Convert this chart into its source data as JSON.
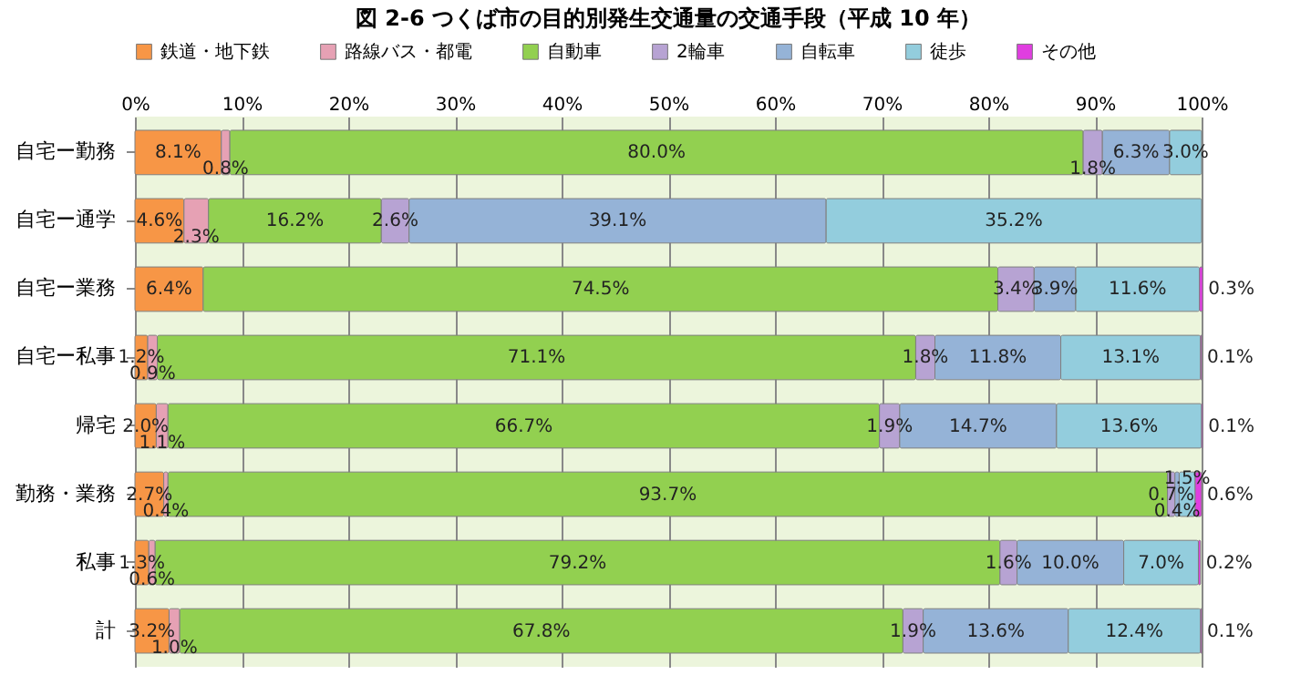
{
  "chart_data": {
    "type": "bar",
    "orientation": "horizontal",
    "stacked": true,
    "title": "図 2-6 つくば市の目的別発生交通量の交通手段（平成 10 年）",
    "categories": [
      "自宅ー勤務",
      "自宅ー通学",
      "自宅ー業務",
      "自宅ー私事",
      "帰宅",
      "勤務・業務",
      "私事",
      "計"
    ],
    "series": [
      {
        "name": "鉄道・地下鉄",
        "color": "#f79646",
        "values": [
          8.1,
          4.6,
          6.4,
          1.2,
          2.0,
          2.7,
          1.3,
          3.2
        ],
        "value_labels": [
          "8.1%",
          "4.6%",
          "6.4%",
          "1.2%",
          "2.0%",
          "2.7%",
          "1.3%",
          "3.2%"
        ]
      },
      {
        "name": "路線バス・都電",
        "color": "#e6a1b4",
        "values": [
          0.8,
          2.3,
          null,
          0.9,
          1.1,
          0.4,
          0.6,
          1.0
        ],
        "value_labels": [
          "0.8%",
          "2.3%",
          null,
          "0.9%",
          "1.1%",
          "0.4%",
          "0.6%",
          "1.0%"
        ]
      },
      {
        "name": "自動車",
        "color": "#92d050",
        "values": [
          80.0,
          16.2,
          74.5,
          71.1,
          66.7,
          93.7,
          79.2,
          67.8
        ],
        "value_labels": [
          "80.0%",
          "16.2%",
          "74.5%",
          "71.1%",
          "66.7%",
          "93.7%",
          "79.2%",
          "67.8%"
        ]
      },
      {
        "name": "2輪車",
        "color": "#b7a3d3",
        "values": [
          1.8,
          2.6,
          3.4,
          1.8,
          1.9,
          0.7,
          1.6,
          1.9
        ],
        "value_labels": [
          "1.8%",
          "2.6%",
          "3.4%",
          "1.8%",
          "1.9%",
          "0.7%",
          "1.6%",
          "1.9%"
        ]
      },
      {
        "name": "自転車",
        "color": "#95b3d7",
        "values": [
          6.3,
          39.1,
          3.9,
          11.8,
          14.7,
          0.4,
          10.0,
          13.6
        ],
        "value_labels": [
          "6.3%",
          "39.1%",
          "3.9%",
          "11.8%",
          "14.7%",
          "0.4%",
          "10.0%",
          "13.6%"
        ]
      },
      {
        "name": "徒歩",
        "color": "#93cddd",
        "values": [
          3.0,
          35.2,
          11.6,
          13.1,
          13.6,
          1.5,
          7.0,
          12.4
        ],
        "value_labels": [
          "3.0%",
          "35.2%",
          "11.6%",
          "13.1%",
          "13.6%",
          "1.5%",
          "7.0%",
          "12.4%"
        ]
      },
      {
        "name": "その他",
        "color": "#e03ee0",
        "values": [
          null,
          null,
          0.3,
          0.1,
          0.1,
          0.6,
          0.2,
          0.1
        ],
        "value_labels": [
          null,
          null,
          "0.3%",
          "0.1%",
          "0.1%",
          "0.6%",
          "0.2%",
          "0.1%"
        ]
      }
    ],
    "xlim": [
      0,
      100
    ],
    "xticks": [
      {
        "value": 0,
        "label": "0%"
      },
      {
        "value": 10,
        "label": "10%"
      },
      {
        "value": 20,
        "label": "20%"
      },
      {
        "value": 30,
        "label": "30%"
      },
      {
        "value": 40,
        "label": "40%"
      },
      {
        "value": 50,
        "label": "50%"
      },
      {
        "value": 60,
        "label": "60%"
      },
      {
        "value": 70,
        "label": "70%"
      },
      {
        "value": 80,
        "label": "80%"
      },
      {
        "value": 90,
        "label": "90%"
      },
      {
        "value": 100,
        "label": "100%"
      }
    ],
    "grid": "x",
    "legend": "top"
  }
}
